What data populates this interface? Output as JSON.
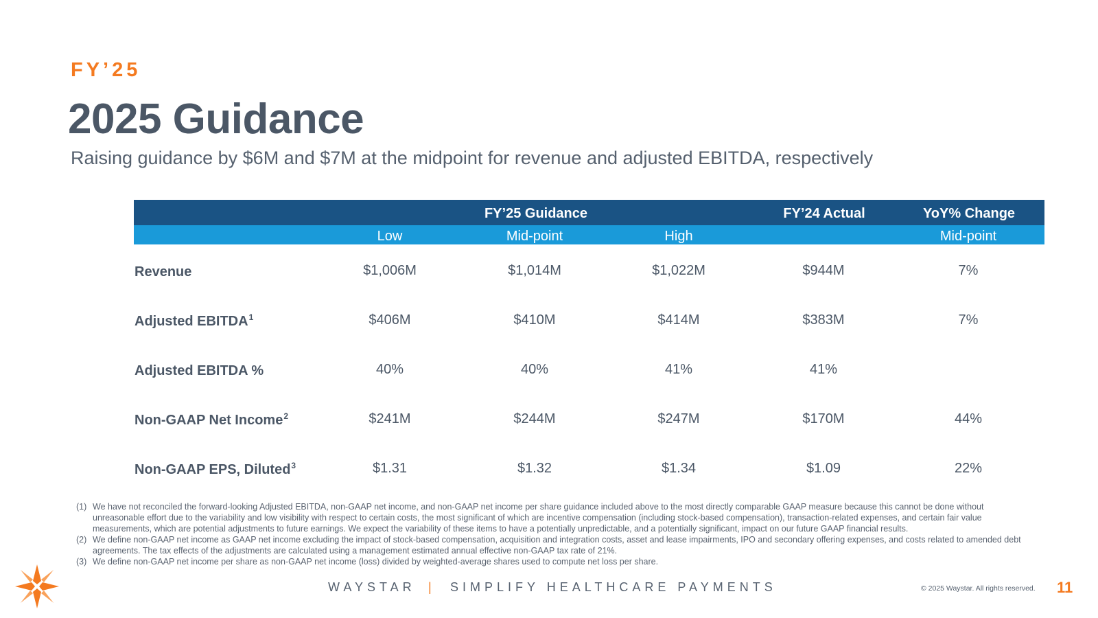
{
  "eyebrow": "FY’25",
  "title": "2025 Guidance",
  "subtitle": "Raising guidance by $6M and $7M at the midpoint for revenue and adjusted EBITDA, respectively",
  "table": {
    "header_groups": {
      "guidance": "FY’25 Guidance",
      "actual": "FY’24 Actual",
      "yoy": "YoY% Change"
    },
    "subheaders": {
      "low": "Low",
      "mid": "Mid-point",
      "high": "High",
      "yoy_mid": "Mid-point"
    },
    "rows": [
      {
        "label": "Revenue",
        "sup": "",
        "low": "$1,006M",
        "mid": "$1,014M",
        "high": "$1,022M",
        "actual": "$944M",
        "yoy": "7%"
      },
      {
        "label": "Adjusted EBITDA",
        "sup": "1",
        "low": "$406M",
        "mid": "$410M",
        "high": "$414M",
        "actual": "$383M",
        "yoy": "7%"
      },
      {
        "label": "Adjusted EBITDA %",
        "sup": "",
        "low": "40%",
        "mid": "40%",
        "high": "41%",
        "actual": "41%",
        "yoy": ""
      },
      {
        "label": "Non-GAAP Net Income",
        "sup": "2",
        "low": "$241M",
        "mid": "$244M",
        "high": "$247M",
        "actual": "$170M",
        "yoy": "44%"
      },
      {
        "label": "Non-GAAP EPS, Diluted",
        "sup": "3",
        "low": "$1.31",
        "mid": "$1.32",
        "high": "$1.34",
        "actual": "$1.09",
        "yoy": "22%"
      }
    ]
  },
  "notes": [
    {
      "num": "(1)",
      "text": "We have not reconciled the forward-looking Adjusted EBITDA, non-GAAP net income, and non-GAAP net income per share guidance included above to the most directly comparable GAAP measure because this cannot be done without unreasonable effort due to the variability and low visibility with respect to certain costs, the most significant of which are incentive compensation (including stock-based compensation), transaction-related expenses, and certain fair value measurements, which are potential adjustments to future earnings. We expect the variability of these items to have a potentially unpredictable, and a potentially significant, impact on our future GAAP financial results."
    },
    {
      "num": "(2)",
      "text": "We define non-GAAP net income as GAAP net income excluding the impact of stock-based compensation, acquisition and integration costs, asset and lease impairments, IPO and secondary offering expenses, and costs related to amended debt agreements. The tax effects of the adjustments are calculated using a management estimated annual effective non-GAAP tax rate of 21%."
    },
    {
      "num": "(3)",
      "text": "We define non-GAAP net income per share as non-GAAP net income (loss) divided by weighted-average shares used to compute net loss per share."
    }
  ],
  "footer": {
    "brand": "WAYSTAR",
    "separator": "|",
    "tagline": "SIMPLIFY HEALTHCARE PAYMENTS",
    "copyright": "© 2025 Waystar. All rights reserved.",
    "page_number": "11"
  },
  "logo_icon": "waystar-star-logo",
  "colors": {
    "accent": "#f47a20",
    "header_dark": "#1a5384",
    "header_light": "#1a9ad9",
    "text": "#4b5766"
  }
}
